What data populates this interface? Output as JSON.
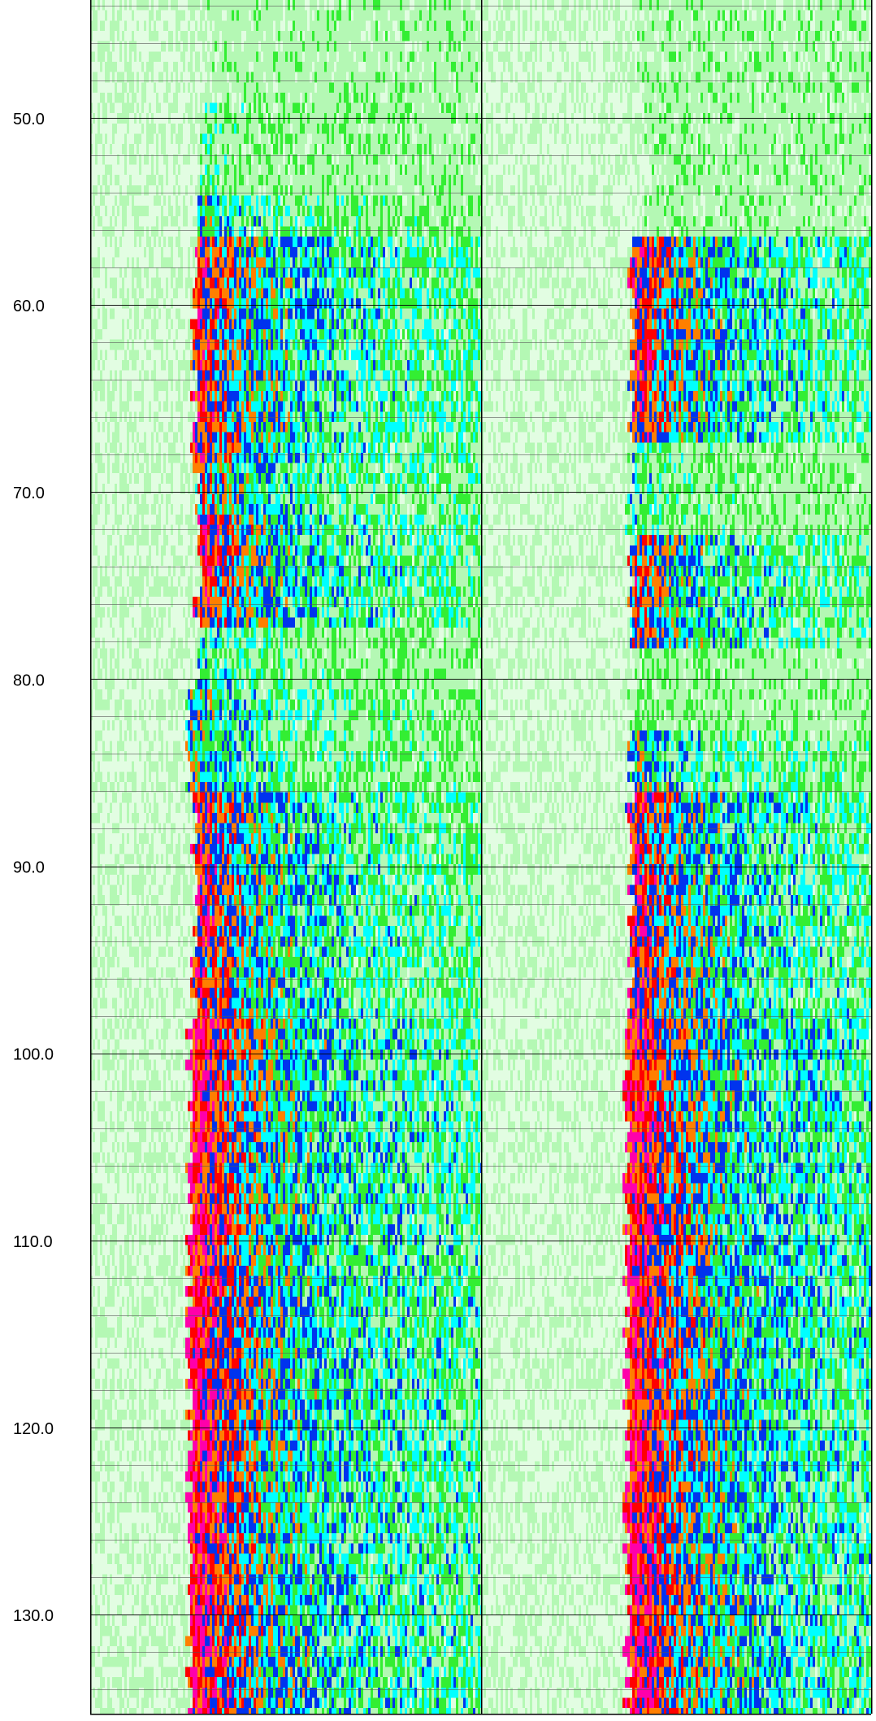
{
  "chart_data": {
    "type": "heatmap",
    "title": "",
    "xlabel": "",
    "ylabel": "",
    "y_axis": {
      "range": [
        43.7,
        135.3
      ],
      "inverted": true,
      "major_step": 10,
      "minor_step": 2,
      "tick_labels": [
        "50.0",
        "60.0",
        "70.0",
        "80.0",
        "90.0",
        "100.0",
        "110.0",
        "120.0",
        "130.0"
      ]
    },
    "grid": true,
    "colormap": {
      "low_to_high": [
        "#ffffff",
        "#e2fde2",
        "#b4f8b4",
        "#33ee33",
        "#00ffff",
        "#0033ee",
        "#ff7f00",
        "#ff0000",
        "#ff00aa"
      ]
    },
    "tracks": [
      {
        "background": "#e6fde6",
        "signal_profile": [
          {
            "from": 43.7,
            "to": 49.0,
            "onset": 0.3,
            "level": 0.1
          },
          {
            "from": 49.0,
            "to": 54.0,
            "onset": 0.28,
            "level": 0.3
          },
          {
            "from": 54.0,
            "to": 56.0,
            "onset": 0.27,
            "level": 0.55
          },
          {
            "from": 56.0,
            "to": 68.0,
            "onset": 0.26,
            "level": 0.85
          },
          {
            "from": 68.0,
            "to": 71.0,
            "onset": 0.27,
            "level": 0.7
          },
          {
            "from": 71.0,
            "to": 77.0,
            "onset": 0.27,
            "level": 0.85
          },
          {
            "from": 77.0,
            "to": 80.0,
            "onset": 0.27,
            "level": 0.45
          },
          {
            "from": 80.0,
            "to": 86.0,
            "onset": 0.25,
            "level": 0.6
          },
          {
            "from": 86.0,
            "to": 98.0,
            "onset": 0.26,
            "level": 0.85
          },
          {
            "from": 98.0,
            "to": 135.3,
            "onset": 0.25,
            "level": 0.95
          }
        ]
      },
      {
        "background": "#f2fef2",
        "signal_profile": [
          {
            "from": 43.7,
            "to": 49.0,
            "onset": 0.4,
            "level": 0.05
          },
          {
            "from": 49.0,
            "to": 56.0,
            "onset": 0.42,
            "level": 0.15
          },
          {
            "from": 56.0,
            "to": 67.0,
            "onset": 0.38,
            "level": 0.85
          },
          {
            "from": 67.0,
            "to": 72.0,
            "onset": 0.38,
            "level": 0.4
          },
          {
            "from": 72.0,
            "to": 78.0,
            "onset": 0.38,
            "level": 0.75
          },
          {
            "from": 78.0,
            "to": 82.5,
            "onset": 0.38,
            "level": 0.25
          },
          {
            "from": 82.5,
            "to": 86.0,
            "onset": 0.38,
            "level": 0.6
          },
          {
            "from": 86.0,
            "to": 98.0,
            "onset": 0.38,
            "level": 0.85
          },
          {
            "from": 98.0,
            "to": 135.3,
            "onset": 0.37,
            "level": 0.95
          }
        ]
      }
    ]
  }
}
